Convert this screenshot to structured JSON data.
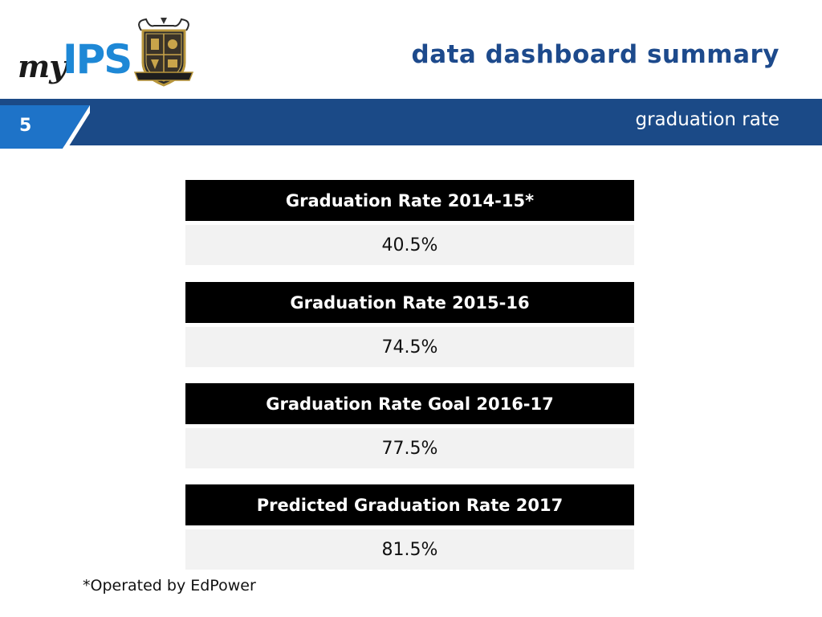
{
  "header": {
    "logo_my": "my",
    "logo_ips": "IPS",
    "title": "data dashboard summary",
    "subtitle": "graduation rate",
    "page_number": "5"
  },
  "cards": [
    {
      "label": "Graduation Rate 2014-15*",
      "value": "40.5%"
    },
    {
      "label": "Graduation Rate 2015-16",
      "value": "74.5%"
    },
    {
      "label": "Graduation Rate Goal 2016-17",
      "value": "77.5%"
    },
    {
      "label": "Predicted Graduation Rate 2017",
      "value": "81.5%"
    }
  ],
  "footnote": "*Operated by EdPower",
  "colors": {
    "navy": "#1b4a87",
    "title_blue": "#1d4a8c",
    "logo_blue": "#1e88d6",
    "tab_blue": "#1e73c8",
    "card_header": "#000000",
    "card_value_bg": "#f2f2f2"
  }
}
